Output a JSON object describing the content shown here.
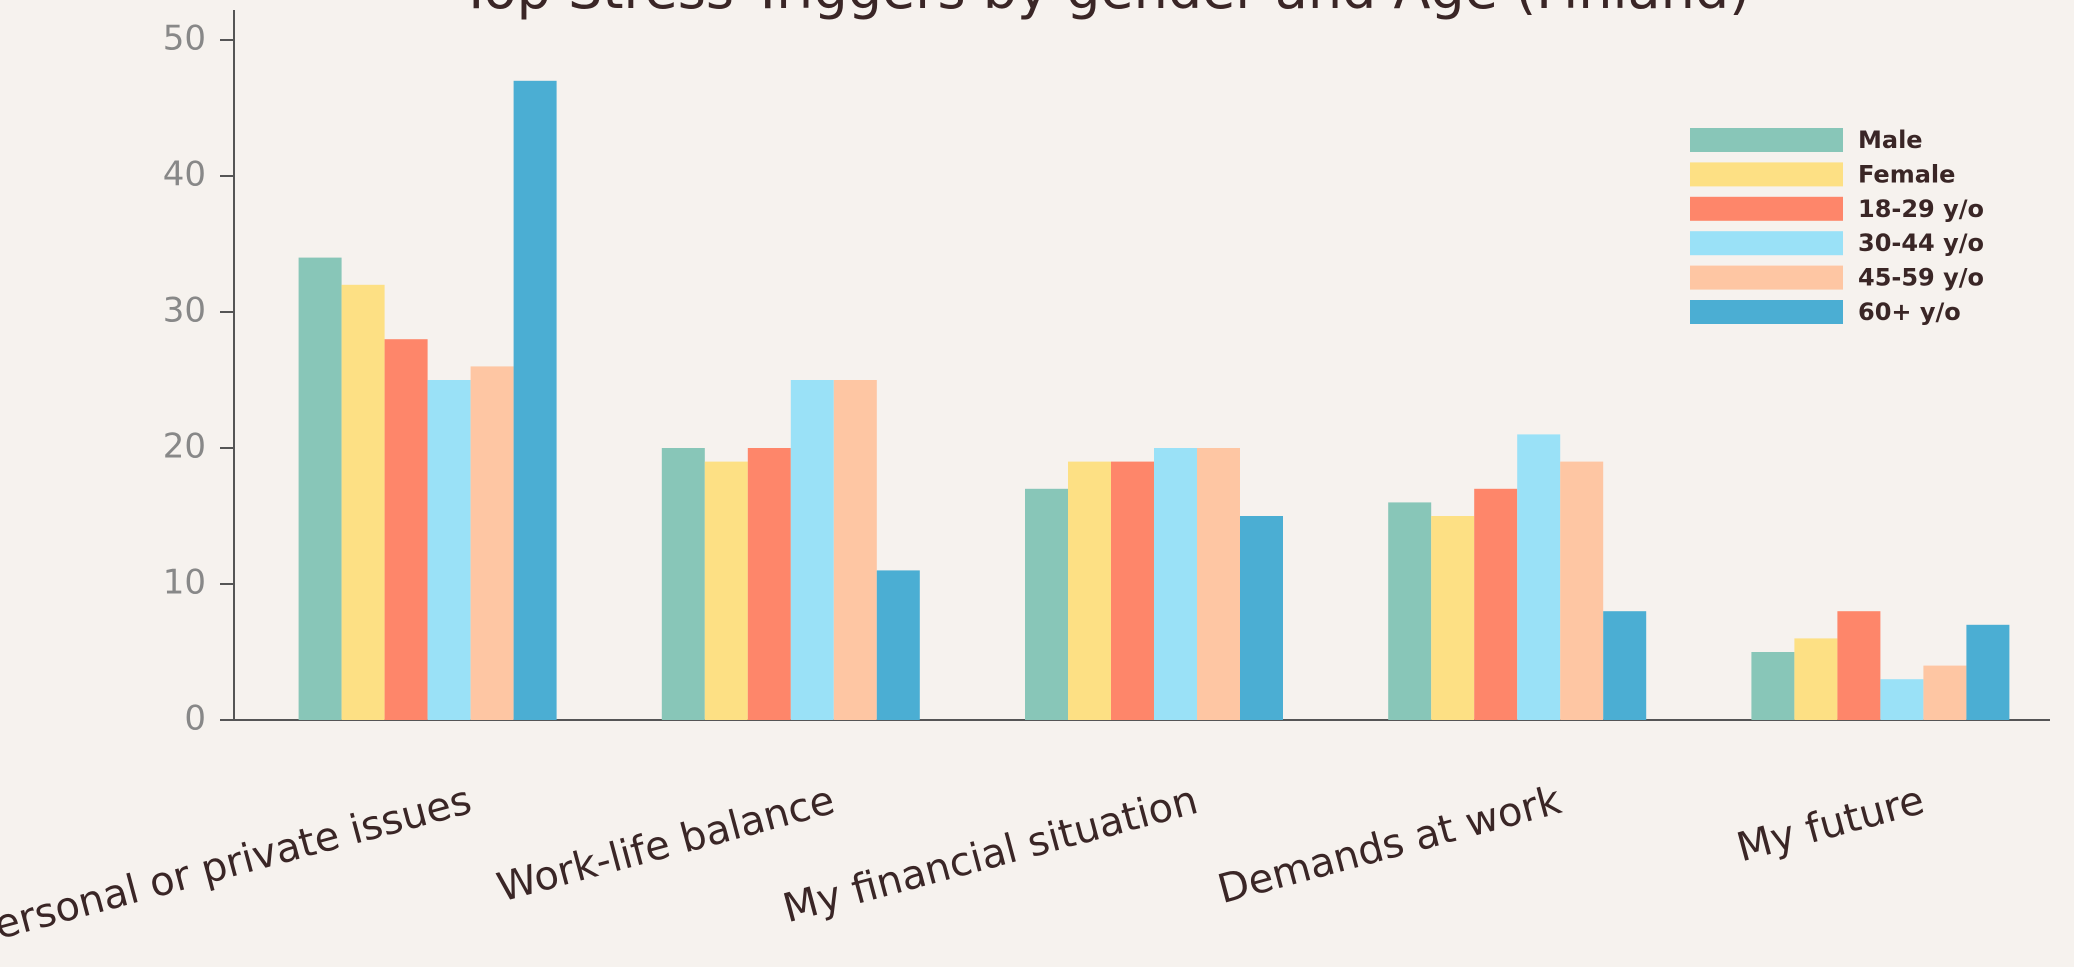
{
  "chart_data": {
    "type": "bar",
    "title": "Top Stress Triggers by gender and Age (Finland)",
    "categories": [
      "Personal or private issues",
      "Work-life balance",
      "My financial situation",
      "Demands at work",
      "My future"
    ],
    "series": [
      {
        "name": "Male",
        "color": "#88c6b8",
        "values": [
          34,
          20,
          17,
          16,
          5
        ]
      },
      {
        "name": "Female",
        "color": "#fde084",
        "values": [
          32,
          19,
          19,
          15,
          6
        ]
      },
      {
        "name": "18-29 y/o",
        "color": "#fe866a",
        "values": [
          28,
          20,
          19,
          17,
          8
        ]
      },
      {
        "name": "30-44 y/o",
        "color": "#9ae1f7",
        "values": [
          25,
          25,
          20,
          21,
          3
        ]
      },
      {
        "name": "45-59 y/o",
        "color": "#fec6a3",
        "values": [
          26,
          25,
          20,
          19,
          4
        ]
      },
      {
        "name": "60+ y/o",
        "color": "#4baed3",
        "values": [
          47,
          11,
          15,
          8,
          7
        ]
      }
    ],
    "ylim": [
      0,
      50
    ],
    "yticks": [
      0,
      10,
      20,
      30,
      40,
      50
    ],
    "legend": "upper right"
  }
}
